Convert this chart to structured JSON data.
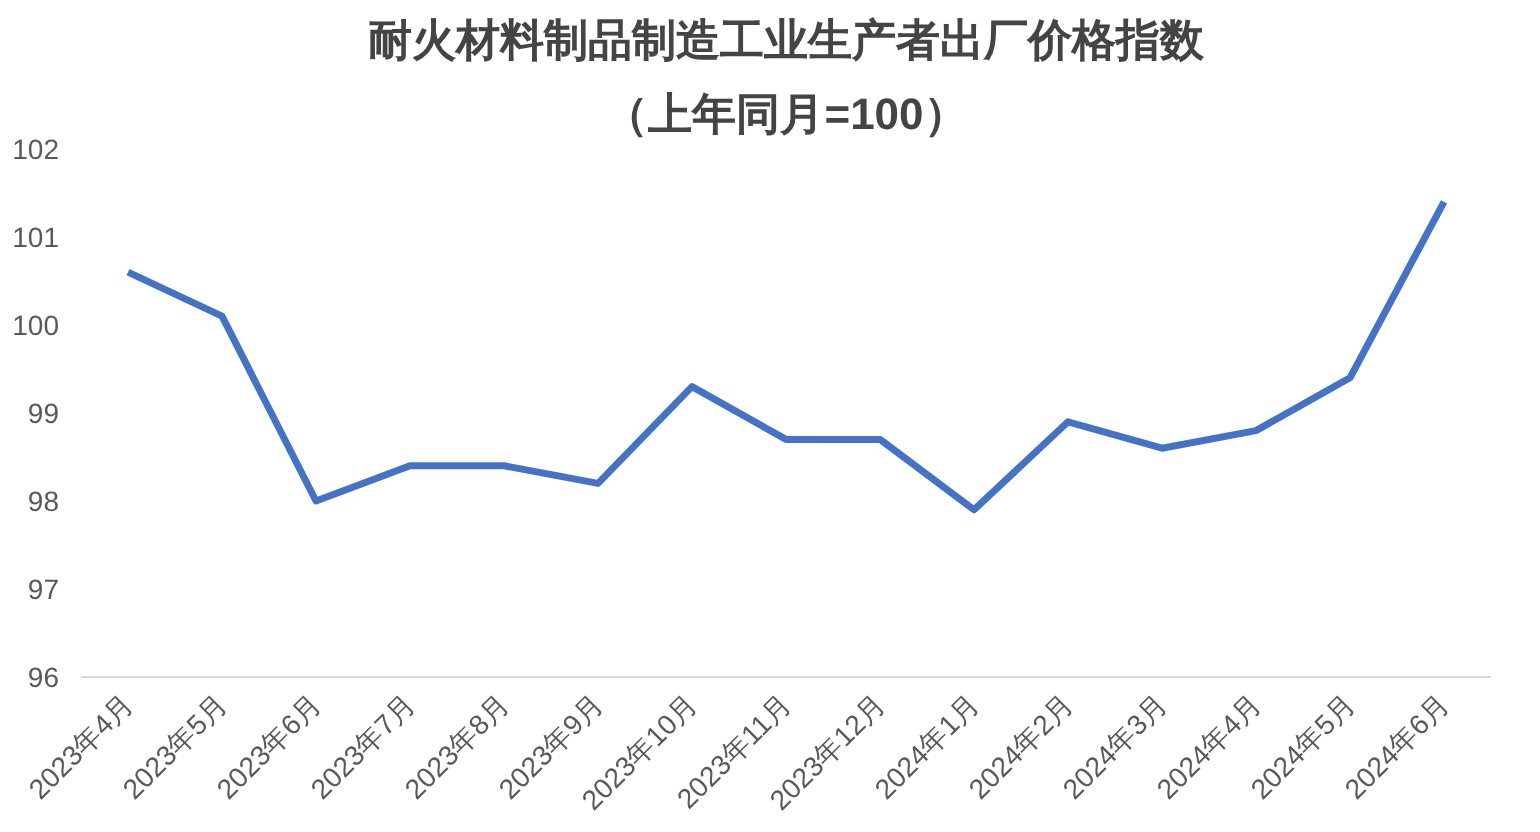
{
  "chart_data": {
    "type": "line",
    "title": "耐火材料制品制造工业生产者出厂价格指数",
    "subtitle": "（上年同月=100）",
    "categories": [
      "2023年4月",
      "2023年5月",
      "2023年6月",
      "2023年7月",
      "2023年8月",
      "2023年9月",
      "2023年10月",
      "2023年11月",
      "2023年12月",
      "2024年1月",
      "2024年2月",
      "2024年3月",
      "2024年4月",
      "2024年5月",
      "2024年6月"
    ],
    "series": [
      {
        "color": "#4472c4",
        "values": [
          100.6,
          100.1,
          98.0,
          98.4,
          98.4,
          98.2,
          99.3,
          98.7,
          98.7,
          97.9,
          98.9,
          98.6,
          98.8,
          99.4,
          101.4
        ]
      }
    ],
    "ylim": [
      96,
      102
    ],
    "yticks": [
      96,
      97,
      98,
      99,
      100,
      101,
      102
    ],
    "marker": "none",
    "line_style": "solid"
  }
}
